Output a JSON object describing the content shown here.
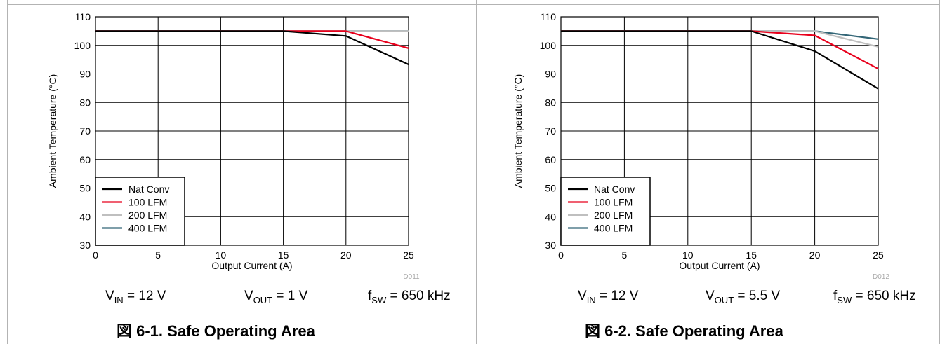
{
  "chart_data": [
    {
      "type": "line",
      "xlabel": "Output Current (A)",
      "ylabel": "Ambient Temperature (°C)",
      "xlim": [
        0,
        25
      ],
      "ylim": [
        30,
        110
      ],
      "xticks": [
        0,
        5,
        10,
        15,
        20,
        25
      ],
      "yticks": [
        30,
        40,
        50,
        60,
        70,
        80,
        90,
        100,
        110
      ],
      "grid": true,
      "legend_position": "bottom-left",
      "figure_id": "D011",
      "series": [
        {
          "name": "Nat Conv",
          "color": "#000000",
          "x": [
            0,
            15,
            20,
            25
          ],
          "y": [
            105,
            105,
            103.3,
            93.3
          ]
        },
        {
          "name": "100 LFM",
          "color": "#e8001c",
          "x": [
            0,
            20,
            25
          ],
          "y": [
            105,
            105,
            99
          ]
        },
        {
          "name": "200 LFM",
          "color": "#bfbfbf",
          "x": [
            0,
            25
          ],
          "y": [
            105,
            105
          ]
        },
        {
          "name": "400 LFM",
          "color": "#336677",
          "x": [
            0,
            25
          ],
          "y": [
            105,
            105
          ]
        }
      ],
      "conditions": {
        "vin_symbol": "V",
        "vin_sub": "IN",
        "vin_value": " = 12 V",
        "vout_symbol": "V",
        "vout_sub": "OUT",
        "vout_value": " = 1 V",
        "fsw_symbol": "f",
        "fsw_sub": "SW",
        "fsw_value": " = 650 kHz"
      },
      "caption": {
        "prefix": "図 6-1. ",
        "title": "Safe Operating Area"
      }
    },
    {
      "type": "line",
      "xlabel": "Output Current (A)",
      "ylabel": "Ambient Temperature (°C)",
      "xlim": [
        0,
        25
      ],
      "ylim": [
        30,
        110
      ],
      "xticks": [
        0,
        5,
        10,
        15,
        20,
        25
      ],
      "yticks": [
        30,
        40,
        50,
        60,
        70,
        80,
        90,
        100,
        110
      ],
      "grid": true,
      "legend_position": "bottom-left",
      "figure_id": "D012",
      "series": [
        {
          "name": "Nat Conv",
          "color": "#000000",
          "x": [
            0,
            15,
            20,
            25
          ],
          "y": [
            105,
            105,
            98,
            84.8
          ]
        },
        {
          "name": "100 LFM",
          "color": "#e8001c",
          "x": [
            0,
            15,
            20,
            25
          ],
          "y": [
            105,
            105,
            103.5,
            91.8
          ]
        },
        {
          "name": "200 LFM",
          "color": "#bfbfbf",
          "x": [
            0,
            15,
            20,
            25
          ],
          "y": [
            105,
            105,
            105,
            99.5
          ]
        },
        {
          "name": "400 LFM",
          "color": "#336677",
          "x": [
            0,
            20,
            25
          ],
          "y": [
            105,
            105,
            102.2
          ]
        }
      ],
      "conditions": {
        "vin_symbol": "V",
        "vin_sub": "IN",
        "vin_value": " = 12 V",
        "vout_symbol": "V",
        "vout_sub": "OUT",
        "vout_value": " = 5.5 V",
        "fsw_symbol": "f",
        "fsw_sub": "SW",
        "fsw_value": " = 650 kHz"
      },
      "caption": {
        "prefix": "図 6-2. ",
        "title": "Safe Operating Area"
      }
    }
  ]
}
